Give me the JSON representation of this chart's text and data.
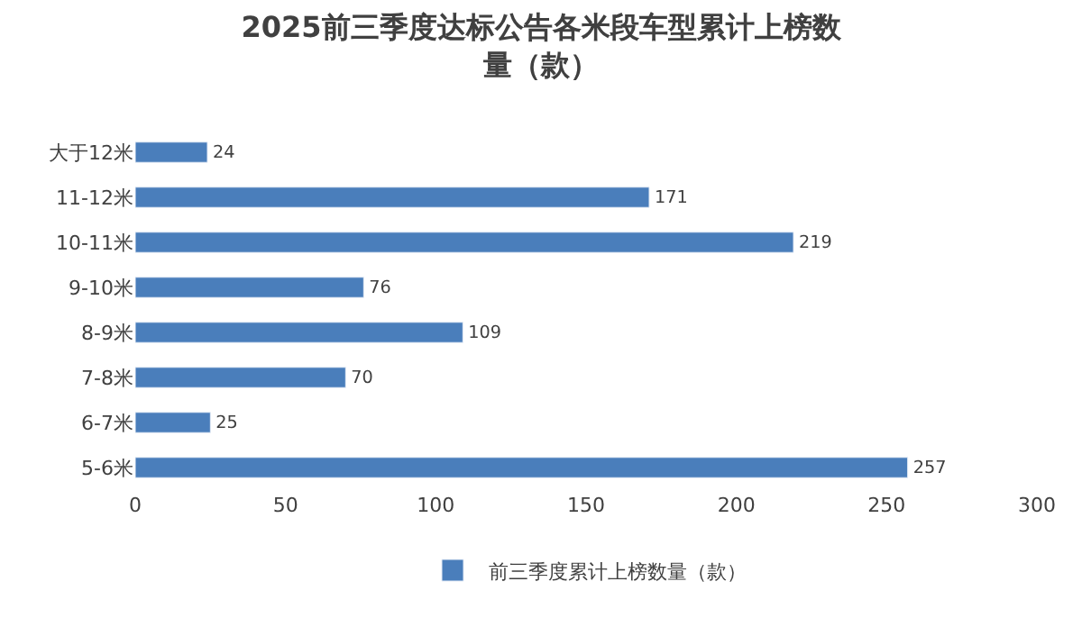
{
  "chart_data": {
    "type": "bar",
    "orientation": "horizontal",
    "title": "2025前三季度达标公告各米段车型累计上榜数量（款）",
    "categories": [
      "大于12米",
      "11-12米",
      "10-11米",
      "9-10米",
      "8-9米",
      "7-8米",
      "6-7米",
      "5-6米"
    ],
    "series": [
      {
        "name": "前三季度累计上榜数量（款）",
        "color": "#4a7ebb",
        "values": [
          24,
          171,
          219,
          76,
          109,
          70,
          25,
          257
        ]
      }
    ],
    "xlim": [
      0,
      300
    ],
    "xticks": [
      0,
      50,
      100,
      150,
      200,
      250,
      300
    ],
    "data_labels": true,
    "legend": "bottom",
    "grid": false
  }
}
